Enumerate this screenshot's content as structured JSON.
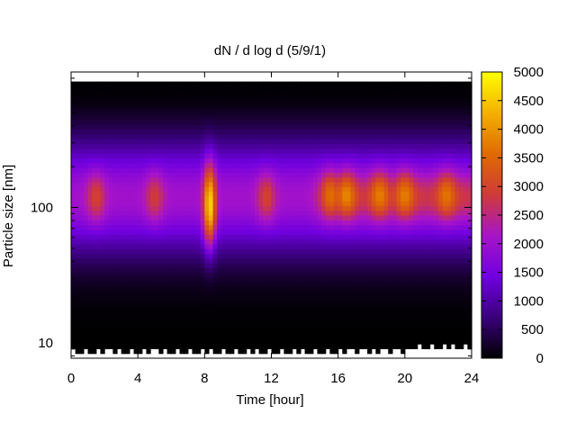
{
  "chart_data": {
    "type": "heatmap",
    "title": "dN / d log d (5/9/1)",
    "xlabel": "Time [hour]",
    "ylabel": "Particle size [nm]",
    "xlim": [
      0,
      24
    ],
    "x_ticks": [
      0,
      4,
      8,
      12,
      16,
      20,
      24
    ],
    "x_tick_labels": [
      "0",
      "4",
      "8",
      "12",
      "16",
      "20",
      "24"
    ],
    "ylim": [
      7.7,
      1000
    ],
    "y_scale": "log",
    "y_ticks": [
      10,
      100
    ],
    "y_tick_labels": [
      "10",
      "100"
    ],
    "colorbar": {
      "range": [
        0,
        5000
      ],
      "ticks": [
        0,
        500,
        1000,
        1500,
        2000,
        2500,
        3000,
        3500,
        4000,
        4500,
        5000
      ],
      "tick_labels": [
        "0",
        "500",
        "1000",
        "1500",
        "2000",
        "2500",
        "3000",
        "3500",
        "4000",
        "4500",
        "5000"
      ],
      "colormap": [
        "#000000",
        "#3a007d",
        "#7000e0",
        "#a814c8",
        "#d03a38",
        "#e06a00",
        "#f4b000",
        "#ffff00"
      ]
    },
    "peak_diameter_nm": 120,
    "max_diameter_nm": 850,
    "peaks": [
      {
        "time": 1.5,
        "diameter_nm": 120,
        "value": 3000
      },
      {
        "time": 5.0,
        "diameter_nm": 120,
        "value": 2900
      },
      {
        "time": 8.3,
        "diameter_nm": 105,
        "value": 4700
      },
      {
        "time": 11.7,
        "diameter_nm": 120,
        "value": 3000
      },
      {
        "time": 15.5,
        "diameter_nm": 125,
        "value": 3100
      },
      {
        "time": 16.5,
        "diameter_nm": 125,
        "value": 3200
      },
      {
        "time": 18.5,
        "diameter_nm": 125,
        "value": 3100
      },
      {
        "time": 20.0,
        "diameter_nm": 125,
        "value": 3100
      },
      {
        "time": 22.5,
        "diameter_nm": 125,
        "value": 3000
      }
    ],
    "grid": false,
    "legend": "colorbar-right"
  }
}
